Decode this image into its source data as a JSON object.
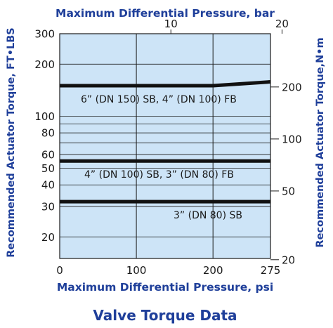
{
  "chart_data": {
    "type": "line",
    "title": "Valve Torque Data",
    "xlabel": "Maximum Differential Pressure, psi",
    "xlabel_top": "Maximum Differential Pressure, bar",
    "ylabel": "Recommended Actuator Torque, FT•LBS",
    "ylabel_right": "Recommended Actuator Torque,N•m",
    "xlim": [
      0,
      275
    ],
    "ylim": [
      15,
      300
    ],
    "y_scale": "log",
    "grid": true,
    "plot_background": "#cde4f7",
    "line_color": "#111111",
    "x_ticks": [
      0,
      100,
      200,
      275
    ],
    "x_ticks_top": [
      10,
      20
    ],
    "y_ticks": [
      20,
      30,
      40,
      50,
      60,
      80,
      100,
      200,
      300
    ],
    "y_ticks_right": [
      20,
      50,
      100,
      200
    ],
    "series": [
      {
        "name": "6” (DN 150) SB, 4” (DN 100)  FB",
        "x": [
          0,
          200,
          275
        ],
        "y": [
          150,
          150,
          158
        ]
      },
      {
        "name": "4” (DN 100) SB, 3” (DN 80) FB",
        "x": [
          0,
          275
        ],
        "y": [
          55,
          55
        ]
      },
      {
        "name": "3” (DN 80) SB",
        "x": [
          0,
          275
        ],
        "y": [
          32,
          32
        ]
      }
    ]
  }
}
